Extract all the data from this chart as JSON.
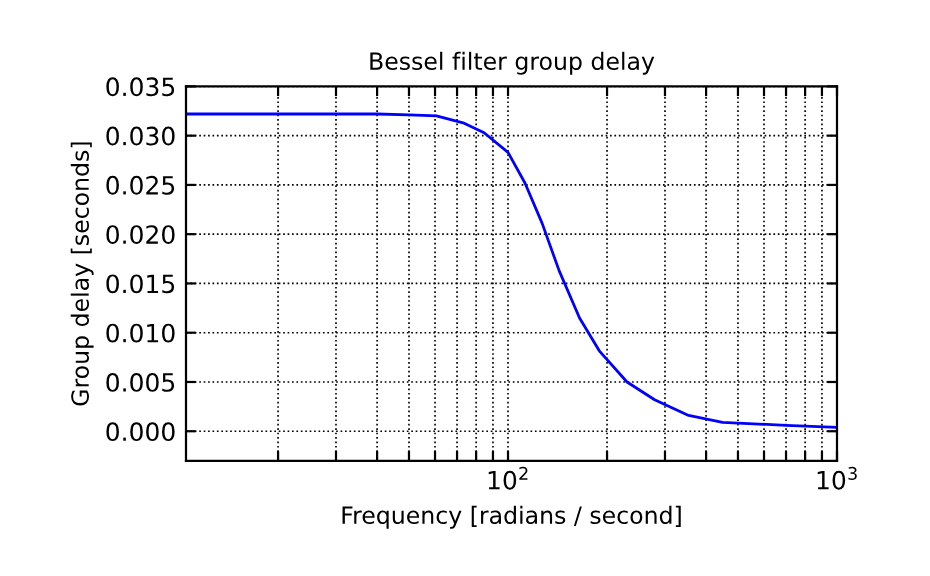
{
  "chart_data": {
    "type": "line",
    "title": "Bessel filter group delay",
    "xlabel": "Frequency [radians / second]",
    "ylabel": "Group delay [seconds]",
    "log": "x",
    "grid": true,
    "marker": "none",
    "line_style": "solid",
    "x": [
      10.5,
      20,
      40,
      50,
      60.6,
      73,
      84.6,
      100,
      112.6,
      127,
      143,
      165,
      190,
      230,
      279,
      354,
      449,
      700,
      1000
    ],
    "series": [
      {
        "color": "#0000ff",
        "values": [
          0.0322,
          0.0322,
          0.0322,
          0.0321,
          0.032,
          0.0313,
          0.0303,
          0.0283,
          0.0252,
          0.0211,
          0.0163,
          0.0115,
          0.0081,
          0.005,
          0.0032,
          0.0016,
          0.0009,
          0.0006,
          0.0004
        ]
      }
    ],
    "xlim": [
      10.5,
      1000
    ],
    "xticks": [
      {
        "value": 20,
        "label": null
      },
      {
        "value": 30,
        "label": null
      },
      {
        "value": 40,
        "label": null
      },
      {
        "value": 50,
        "label": null
      },
      {
        "value": 60,
        "label": null
      },
      {
        "value": 70,
        "label": null
      },
      {
        "value": 80,
        "label": null
      },
      {
        "value": 90,
        "label": null
      },
      {
        "value": 100,
        "label": "10$^{2}$"
      },
      {
        "value": 200,
        "label": null
      },
      {
        "value": 300,
        "label": null
      },
      {
        "value": 400,
        "label": null
      },
      {
        "value": 500,
        "label": null
      },
      {
        "value": 600,
        "label": null
      },
      {
        "value": 700,
        "label": null
      },
      {
        "value": 800,
        "label": null
      },
      {
        "value": 900,
        "label": null
      },
      {
        "value": 1000,
        "label": "10$^{3}$"
      }
    ],
    "ylim": [
      -0.003,
      0.035
    ],
    "yticks": [
      {
        "value": 0.0,
        "label": "0.000"
      },
      {
        "value": 0.005,
        "label": "0.005"
      },
      {
        "value": 0.01,
        "label": "0.010"
      },
      {
        "value": 0.015,
        "label": "0.015"
      },
      {
        "value": 0.02,
        "label": "0.020"
      },
      {
        "value": 0.025,
        "label": "0.025"
      },
      {
        "value": 0.03,
        "label": "0.030"
      },
      {
        "value": 0.035,
        "label": "0.035"
      }
    ]
  }
}
